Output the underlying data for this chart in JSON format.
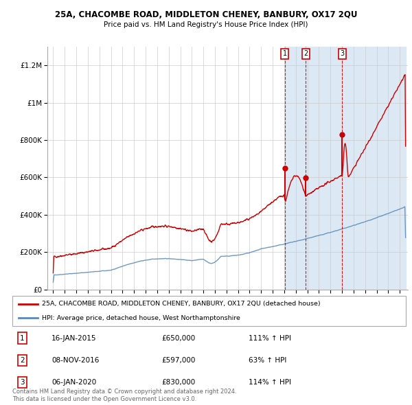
{
  "title": "25A, CHACOMBE ROAD, MIDDLETON CHENEY, BANBURY, OX17 2QU",
  "subtitle": "Price paid vs. HM Land Registry's House Price Index (HPI)",
  "legend_red": "25A, CHACOMBE ROAD, MIDDLETON CHENEY, BANBURY, OX17 2QU (detached house)",
  "legend_blue": "HPI: Average price, detached house, West Northamptonshire",
  "footnote1": "Contains HM Land Registry data © Crown copyright and database right 2024.",
  "footnote2": "This data is licensed under the Open Government Licence v3.0.",
  "transactions": [
    {
      "num": 1,
      "date": "16-JAN-2015",
      "price": 650000,
      "hpi_pct": "111% ↑ HPI",
      "x_year": 2015.04
    },
    {
      "num": 2,
      "date": "08-NOV-2016",
      "price": 597000,
      "hpi_pct": "63% ↑ HPI",
      "x_year": 2016.85
    },
    {
      "num": 3,
      "date": "06-JAN-2020",
      "price": 830000,
      "hpi_pct": "114% ↑ HPI",
      "x_year": 2020.02
    }
  ],
  "shaded_region_start": 2015.04,
  "shaded_region_end": 2025.5,
  "background_color": "#ffffff",
  "plot_bg_color": "#ffffff",
  "shaded_color": "#dce9f5",
  "grid_color": "#cccccc",
  "red_line_color": "#cc0000",
  "blue_line_color": "#5588bb",
  "marker_color": "#cc0000",
  "dashed_line_color": "#cc0000",
  "ylim": [
    0,
    1300000
  ],
  "xlim_start": 1994.5,
  "xlim_end": 2025.7
}
